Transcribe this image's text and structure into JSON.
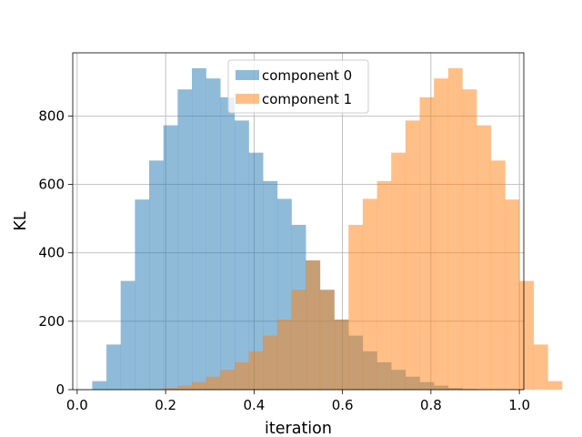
{
  "chart_data": {
    "type": "bar",
    "title": "",
    "xlabel": "iteration",
    "ylabel": "KL",
    "xlim": [
      -0.01,
      1.01
    ],
    "ylim": [
      0,
      985
    ],
    "x_ticks": [
      0.0,
      0.2,
      0.4,
      0.6,
      0.8,
      1.0
    ],
    "x_tick_labels": [
      "0.0",
      "0.2",
      "0.4",
      "0.6",
      "0.8",
      "1.0"
    ],
    "y_ticks": [
      0,
      200,
      400,
      600,
      800
    ],
    "y_tick_labels": [
      "0",
      "200",
      "400",
      "600",
      "800"
    ],
    "grid": true,
    "legend_position": "top-center",
    "bin_width": 0.0322,
    "series": [
      {
        "name": "component 0",
        "color": "#1f77b4",
        "alpha": 0.5,
        "bin_start": 0.034,
        "values": [
          25,
          132,
          318,
          556,
          670,
          773,
          878,
          940,
          910,
          855,
          787,
          693,
          610,
          558,
          482,
          378,
          292,
          205,
          158,
          112,
          80,
          58,
          38,
          22,
          12,
          5,
          2,
          0,
          0,
          0
        ]
      },
      {
        "name": "component 1",
        "color": "#ff7f0e",
        "alpha": 0.5,
        "bin_start": 0.034,
        "values": [
          0,
          0,
          0,
          0,
          0,
          5,
          12,
          22,
          38,
          58,
          80,
          112,
          158,
          205,
          292,
          378,
          292,
          205,
          482,
          558,
          610,
          693,
          787,
          855,
          910,
          940,
          878,
          773,
          670,
          556,
          318,
          132,
          25
        ]
      }
    ]
  }
}
